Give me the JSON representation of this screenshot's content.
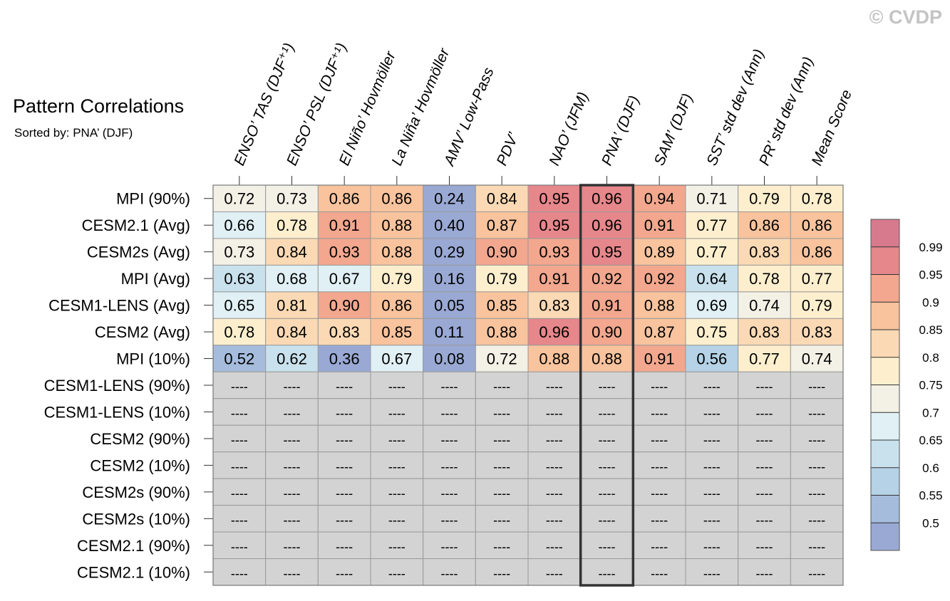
{
  "watermark": "© CVDP",
  "chart_data": {
    "type": "heatmap",
    "title": "Pattern Correlations",
    "subtitle": "Sorted by: PNA’ (DJF)",
    "highlighted_column": "PNA’ (DJF)",
    "missing_label": "----",
    "columns": [
      "ENSO’ TAS (DJF⁺¹)",
      "ENSO’ PSL (DJF⁺¹)",
      "El Niño’ Hovmöller",
      "La Niña’ Hovmöller",
      "AMV’ Low-Pass",
      "PDV’",
      "NAO’ (JFM)",
      "PNA’ (DJF)",
      "SAM’ (DJF)",
      "SST’ std dev (Ann)",
      "PR’ std dev (Ann)",
      "Mean Score"
    ],
    "rows": [
      "MPI (90%)",
      "CESM2.1 (Avg)",
      "CESM2s (Avg)",
      "MPI (Avg)",
      "CESM1-LENS (Avg)",
      "CESM2 (Avg)",
      "MPI (10%)",
      "CESM1-LENS (90%)",
      "CESM1-LENS (10%)",
      "CESM2 (90%)",
      "CESM2 (10%)",
      "CESM2s (90%)",
      "CESM2s (10%)",
      "CESM2.1 (90%)",
      "CESM2.1 (10%)"
    ],
    "values": [
      [
        0.72,
        0.73,
        0.86,
        0.86,
        0.24,
        0.84,
        0.95,
        0.96,
        0.94,
        0.71,
        0.79,
        0.78
      ],
      [
        0.66,
        0.78,
        0.91,
        0.88,
        0.4,
        0.87,
        0.95,
        0.96,
        0.91,
        0.77,
        0.86,
        0.86
      ],
      [
        0.73,
        0.84,
        0.93,
        0.88,
        0.29,
        0.9,
        0.93,
        0.95,
        0.89,
        0.77,
        0.83,
        0.86
      ],
      [
        0.63,
        0.68,
        0.67,
        0.79,
        0.16,
        0.79,
        0.91,
        0.92,
        0.92,
        0.64,
        0.78,
        0.77
      ],
      [
        0.65,
        0.81,
        0.9,
        0.86,
        0.05,
        0.85,
        0.83,
        0.91,
        0.88,
        0.69,
        0.74,
        0.79
      ],
      [
        0.78,
        0.84,
        0.83,
        0.85,
        0.11,
        0.88,
        0.96,
        0.9,
        0.87,
        0.75,
        0.83,
        0.83
      ],
      [
        0.52,
        0.62,
        0.36,
        0.67,
        0.08,
        0.72,
        0.88,
        0.88,
        0.91,
        0.56,
        0.77,
        0.74
      ],
      [
        null,
        null,
        null,
        null,
        null,
        null,
        null,
        null,
        null,
        null,
        null,
        null
      ],
      [
        null,
        null,
        null,
        null,
        null,
        null,
        null,
        null,
        null,
        null,
        null,
        null
      ],
      [
        null,
        null,
        null,
        null,
        null,
        null,
        null,
        null,
        null,
        null,
        null,
        null
      ],
      [
        null,
        null,
        null,
        null,
        null,
        null,
        null,
        null,
        null,
        null,
        null,
        null
      ],
      [
        null,
        null,
        null,
        null,
        null,
        null,
        null,
        null,
        null,
        null,
        null,
        null
      ],
      [
        null,
        null,
        null,
        null,
        null,
        null,
        null,
        null,
        null,
        null,
        null,
        null
      ],
      [
        null,
        null,
        null,
        null,
        null,
        null,
        null,
        null,
        null,
        null,
        null,
        null
      ],
      [
        null,
        null,
        null,
        null,
        null,
        null,
        null,
        null,
        null,
        null,
        null,
        null
      ]
    ],
    "colorbar": {
      "tick_labels": [
        "0.99",
        "0.95",
        "0.9",
        "0.85",
        "0.8",
        "0.75",
        "0.7",
        "0.65",
        "0.6",
        "0.55",
        "0.5"
      ],
      "boundaries": [
        0.99,
        0.95,
        0.9,
        0.85,
        0.8,
        0.75,
        0.7,
        0.65,
        0.6,
        0.55,
        0.5
      ],
      "colors_top_to_bottom": [
        "#d77a8e",
        "#e5878b",
        "#f2a78e",
        "#f8c39d",
        "#fad9b4",
        "#fdefce",
        "#f3f1e6",
        "#e0f0f5",
        "#c9e1ed",
        "#b5d2e6",
        "#a5bcdc",
        "#99a9d4"
      ],
      "missing_color": "#d3d3d3"
    }
  }
}
